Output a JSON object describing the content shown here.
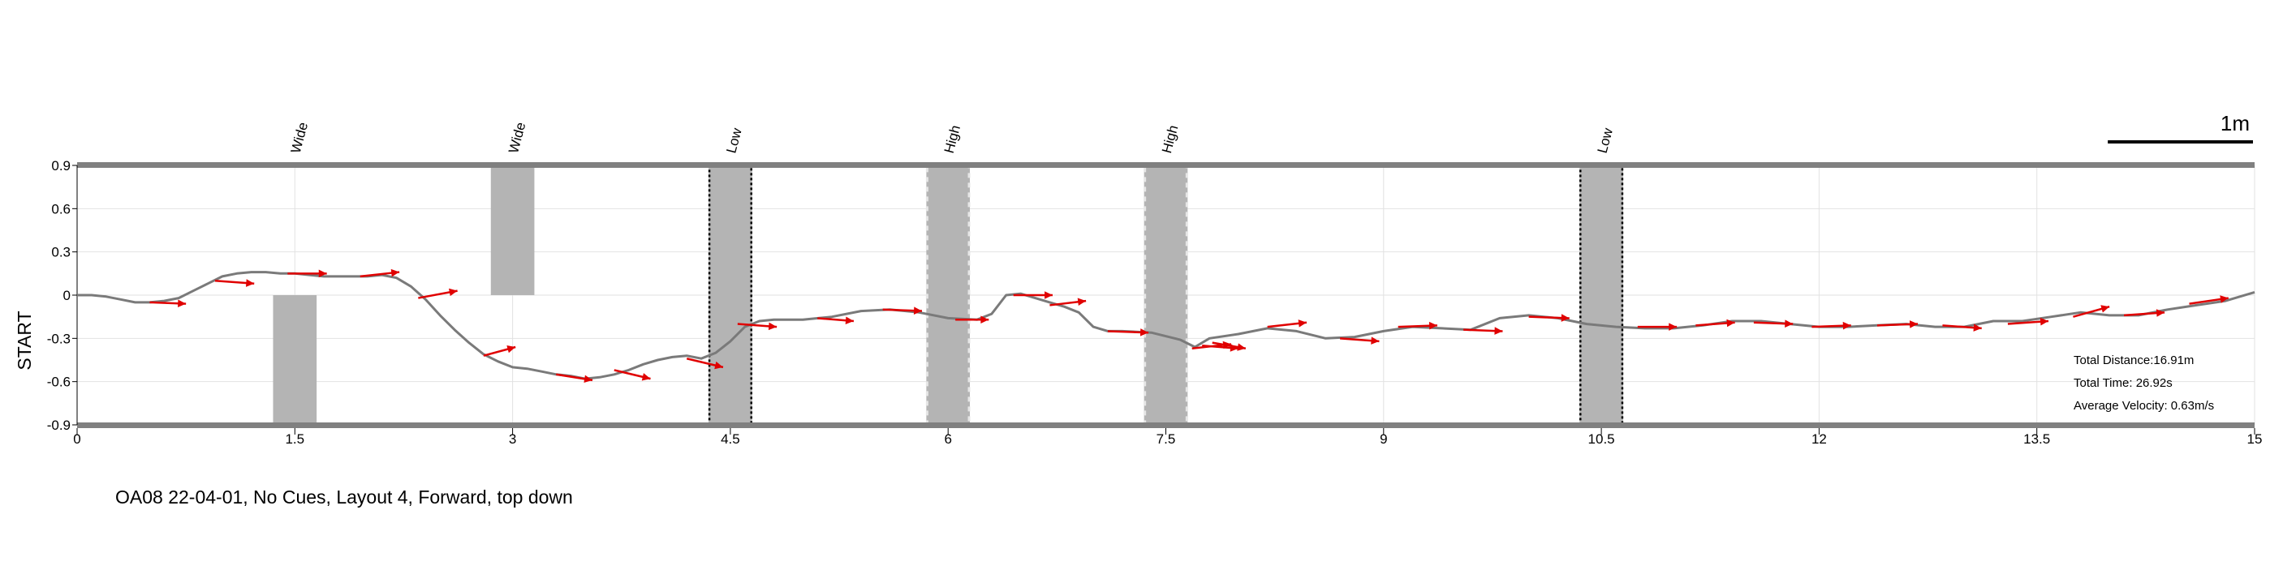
{
  "chart_data": {
    "type": "line",
    "xlim": [
      0,
      15
    ],
    "ylim": [
      -0.9,
      0.9
    ],
    "xticks": [
      "0",
      "1.5",
      "3",
      "4.5",
      "6",
      "7.5",
      "9",
      "10.5",
      "12",
      "13.5",
      "15"
    ],
    "xtick_values": [
      0,
      1.5,
      3,
      4.5,
      6,
      7.5,
      9,
      10.5,
      12,
      13.5,
      15
    ],
    "yticks": [
      "0.9",
      "0.6",
      "0.3",
      "0",
      "-0.3",
      "-0.6",
      "-0.9"
    ],
    "ytick_values": [
      0.9,
      0.6,
      0.3,
      0,
      -0.3,
      -0.6,
      -0.9
    ],
    "grid": true,
    "start_label": "START",
    "caption": "OA08 22-04-01, No Cues, Layout 4, Forward, top down",
    "scale_bar": {
      "label": "1m",
      "length": 1
    },
    "stats": {
      "distance": "Total Distance:16.91m",
      "time": "Total Time: 26.92s",
      "velocity": "Average Velocity: 0.63m/s"
    },
    "obstacles": [
      {
        "label": "Wide",
        "x0": 1.35,
        "x1": 1.65,
        "y0": -0.9,
        "y1": 0.0,
        "style": "block"
      },
      {
        "label": "Wide",
        "x0": 2.85,
        "x1": 3.15,
        "y0": 0.0,
        "y1": 0.9,
        "style": "block"
      },
      {
        "label": "Low",
        "x0": 4.35,
        "x1": 4.65,
        "y0": -0.9,
        "y1": 0.9,
        "style": "low"
      },
      {
        "label": "High",
        "x0": 5.85,
        "x1": 6.15,
        "y0": -0.9,
        "y1": 0.9,
        "style": "high"
      },
      {
        "label": "High",
        "x0": 7.35,
        "x1": 7.65,
        "y0": -0.9,
        "y1": 0.9,
        "style": "high"
      },
      {
        "label": "Low",
        "x0": 10.35,
        "x1": 10.65,
        "y0": -0.9,
        "y1": 0.9,
        "style": "low"
      }
    ],
    "colors": {
      "path": "#7a7a7a",
      "arrow": "#e00000",
      "obstacle": "#b4b4b4",
      "border": "#808080",
      "grid": "#e2e2e2"
    },
    "path": {
      "x": [
        0,
        0.1,
        0.2,
        0.3,
        0.4,
        0.5,
        0.6,
        0.7,
        0.8,
        0.9,
        1.0,
        1.1,
        1.2,
        1.3,
        1.4,
        1.5,
        1.6,
        1.7,
        1.8,
        1.9,
        2.0,
        2.1,
        2.2,
        2.3,
        2.4,
        2.5,
        2.6,
        2.7,
        2.8,
        2.9,
        3.0,
        3.1,
        3.2,
        3.3,
        3.4,
        3.5,
        3.6,
        3.7,
        3.8,
        3.9,
        4.0,
        4.1,
        4.2,
        4.3,
        4.4,
        4.5,
        4.6,
        4.7,
        4.8,
        4.9,
        5.0,
        5.2,
        5.4,
        5.6,
        5.8,
        6.0,
        6.2,
        6.3,
        6.4,
        6.5,
        6.6,
        6.7,
        6.8,
        6.9,
        7.0,
        7.1,
        7.2,
        7.4,
        7.6,
        7.7,
        7.8,
        8.0,
        8.2,
        8.4,
        8.6,
        8.8,
        9.0,
        9.2,
        9.4,
        9.6,
        9.8,
        10.0,
        10.2,
        10.4,
        10.6,
        10.8,
        11.0,
        11.2,
        11.4,
        11.6,
        11.8,
        12.0,
        12.2,
        12.4,
        12.6,
        12.8,
        13.0,
        13.2,
        13.4,
        13.6,
        13.8,
        14.0,
        14.2,
        14.4,
        14.6,
        14.8,
        15.0
      ],
      "y": [
        0.0,
        0.0,
        -0.01,
        -0.03,
        -0.05,
        -0.05,
        -0.04,
        -0.02,
        0.03,
        0.08,
        0.13,
        0.15,
        0.16,
        0.16,
        0.15,
        0.15,
        0.14,
        0.13,
        0.13,
        0.13,
        0.13,
        0.14,
        0.12,
        0.06,
        -0.03,
        -0.14,
        -0.24,
        -0.33,
        -0.41,
        -0.46,
        -0.5,
        -0.51,
        -0.53,
        -0.55,
        -0.56,
        -0.58,
        -0.57,
        -0.55,
        -0.52,
        -0.48,
        -0.45,
        -0.43,
        -0.42,
        -0.44,
        -0.4,
        -0.32,
        -0.22,
        -0.18,
        -0.17,
        -0.17,
        -0.17,
        -0.15,
        -0.11,
        -0.1,
        -0.12,
        -0.16,
        -0.17,
        -0.13,
        0.0,
        0.01,
        -0.02,
        -0.05,
        -0.08,
        -0.12,
        -0.22,
        -0.25,
        -0.25,
        -0.26,
        -0.31,
        -0.36,
        -0.3,
        -0.27,
        -0.23,
        -0.25,
        -0.3,
        -0.29,
        -0.25,
        -0.22,
        -0.23,
        -0.24,
        -0.16,
        -0.14,
        -0.16,
        -0.2,
        -0.22,
        -0.23,
        -0.23,
        -0.21,
        -0.18,
        -0.18,
        -0.2,
        -0.22,
        -0.22,
        -0.21,
        -0.2,
        -0.22,
        -0.22,
        -0.18,
        -0.18,
        -0.15,
        -0.12,
        -0.14,
        -0.14,
        -0.1,
        -0.07,
        -0.04,
        0.02
      ]
    },
    "heading_arrows": [
      [
        0.5,
        -0.05,
        0.75,
        -0.06
      ],
      [
        0.95,
        0.1,
        1.22,
        0.08
      ],
      [
        1.45,
        0.15,
        1.72,
        0.15
      ],
      [
        1.95,
        0.13,
        2.22,
        0.16
      ],
      [
        2.35,
        -0.02,
        2.62,
        0.03
      ],
      [
        2.8,
        -0.42,
        3.02,
        -0.36
      ],
      [
        3.3,
        -0.55,
        3.55,
        -0.59
      ],
      [
        3.7,
        -0.52,
        3.95,
        -0.58
      ],
      [
        4.2,
        -0.44,
        4.45,
        -0.5
      ],
      [
        4.55,
        -0.2,
        4.82,
        -0.22
      ],
      [
        5.1,
        -0.16,
        5.35,
        -0.18
      ],
      [
        5.55,
        -0.1,
        5.82,
        -0.11
      ],
      [
        6.05,
        -0.17,
        6.28,
        -0.17
      ],
      [
        6.45,
        0.0,
        6.72,
        0.0
      ],
      [
        6.7,
        -0.07,
        6.95,
        -0.04
      ],
      [
        7.1,
        -0.25,
        7.38,
        -0.26
      ],
      [
        7.68,
        -0.37,
        7.95,
        -0.34
      ],
      [
        7.75,
        -0.35,
        8.0,
        -0.37
      ],
      [
        7.82,
        -0.33,
        8.05,
        -0.37
      ],
      [
        8.2,
        -0.22,
        8.47,
        -0.19
      ],
      [
        8.7,
        -0.3,
        8.97,
        -0.32
      ],
      [
        9.1,
        -0.22,
        9.37,
        -0.21
      ],
      [
        9.55,
        -0.24,
        9.82,
        -0.25
      ],
      [
        10.0,
        -0.15,
        10.28,
        -0.16
      ],
      [
        10.75,
        -0.22,
        11.02,
        -0.22
      ],
      [
        11.15,
        -0.21,
        11.42,
        -0.19
      ],
      [
        11.55,
        -0.19,
        11.82,
        -0.2
      ],
      [
        11.95,
        -0.22,
        12.22,
        -0.21
      ],
      [
        12.4,
        -0.21,
        12.68,
        -0.2
      ],
      [
        12.85,
        -0.21,
        13.12,
        -0.23
      ],
      [
        13.3,
        -0.2,
        13.58,
        -0.18
      ],
      [
        13.75,
        -0.15,
        14.0,
        -0.08
      ],
      [
        14.1,
        -0.14,
        14.38,
        -0.12
      ],
      [
        14.55,
        -0.06,
        14.82,
        -0.02
      ]
    ]
  }
}
